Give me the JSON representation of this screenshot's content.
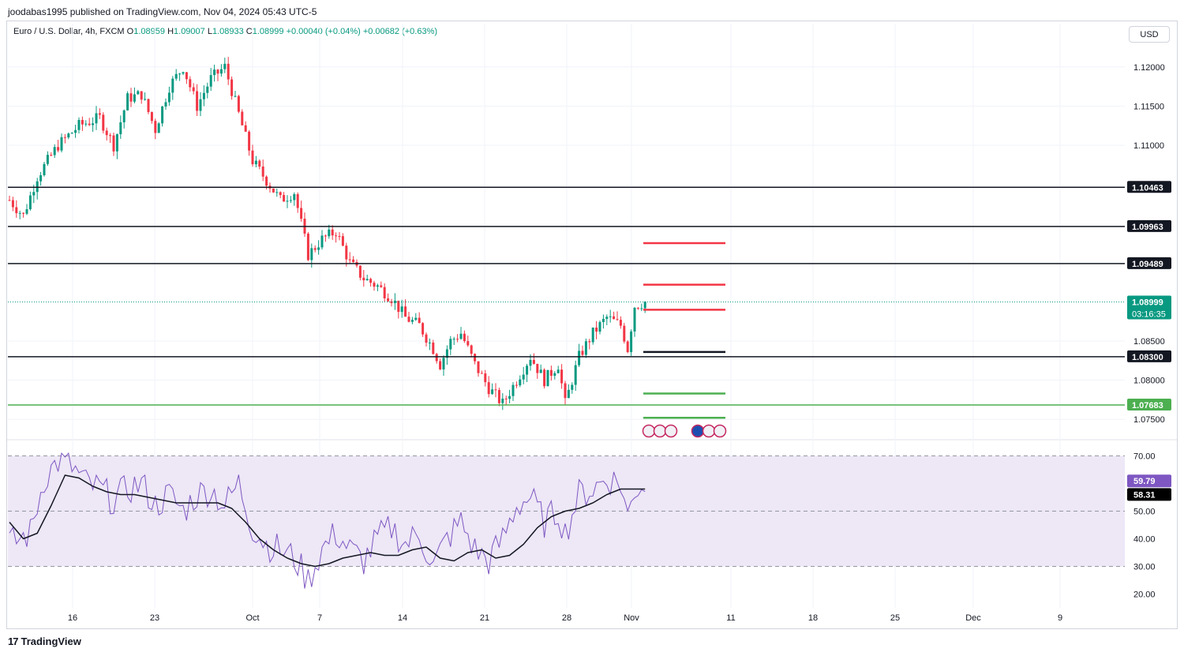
{
  "header": {
    "published": "joodabas1995 published on TradingView.com, Nov 04, 2024 05:43 UTC-5",
    "symbol": "Euro / U.S. Dollar, 4h, FXCM",
    "open_label": "O",
    "open": "1.08959",
    "high_label": "H",
    "high": "1.09007",
    "low_label": "L",
    "low": "1.08933",
    "close_label": "C",
    "close": "1.08999",
    "change": "+0.00040 (+0.04%)",
    "change2": "+0.00682 (+0.63%)"
  },
  "currency_button": "USD",
  "footer": {
    "brand": "TradingView"
  },
  "colors": {
    "up": "#089981",
    "down": "#f23645",
    "rsi": "#7e57c2",
    "rsi_band": "#ede7f6",
    "level": "#131722",
    "support": "#4caf50"
  },
  "chart_data": [
    {
      "type": "candlestick",
      "name": "EURUSD 4h",
      "ylim": [
        1.0725,
        1.1225
      ],
      "y_ticks": [
        "1.12000",
        "1.11500",
        "1.11000",
        "1.08500",
        "1.08000",
        "1.07500"
      ],
      "y_tick_values": [
        1.12,
        1.115,
        1.11,
        1.085,
        1.08,
        1.075
      ],
      "x_ticks": [
        "16",
        "23",
        "Oct",
        "7",
        "14",
        "21",
        "28",
        "Nov",
        "11",
        "18",
        "25",
        "Dec",
        "9"
      ],
      "price_path": [
        [
          0,
          1.103
        ],
        [
          4,
          1.101
        ],
        [
          8,
          1.106
        ],
        [
          14,
          1.11
        ],
        [
          20,
          1.1125
        ],
        [
          26,
          1.1135
        ],
        [
          30,
          1.11
        ],
        [
          34,
          1.116
        ],
        [
          38,
          1.1165
        ],
        [
          42,
          1.112
        ],
        [
          46,
          1.1175
        ],
        [
          50,
          1.12
        ],
        [
          54,
          1.115
        ],
        [
          58,
          1.1185
        ],
        [
          62,
          1.12
        ],
        [
          66,
          1.114
        ],
        [
          70,
          1.108
        ],
        [
          74,
          1.1055
        ],
        [
          78,
          1.103
        ],
        [
          82,
          1.104
        ],
        [
          86,
          1.096
        ],
        [
          90,
          1.098
        ],
        [
          94,
          1.099
        ],
        [
          98,
          1.095
        ],
        [
          102,
          1.093
        ],
        [
          106,
          1.092
        ],
        [
          110,
          1.0905
        ],
        [
          114,
          1.088
        ],
        [
          118,
          1.087
        ],
        [
          122,
          1.084
        ],
        [
          124,
          1.082
        ],
        [
          127,
          1.085
        ],
        [
          130,
          1.086
        ],
        [
          134,
          1.082
        ],
        [
          138,
          1.079
        ],
        [
          142,
          1.077
        ],
        [
          146,
          1.08
        ],
        [
          150,
          1.083
        ],
        [
          154,
          1.08
        ],
        [
          158,
          1.082
        ],
        [
          160,
          1.077
        ],
        [
          164,
          1.083
        ],
        [
          168,
          1.086
        ],
        [
          172,
          1.088
        ],
        [
          176,
          1.087
        ],
        [
          178,
          1.084
        ],
        [
          180,
          1.0895
        ],
        [
          183,
          1.09
        ]
      ],
      "price_labels": [
        {
          "value": 1.10463,
          "text": "1.10463",
          "kind": "level"
        },
        {
          "value": 1.09963,
          "text": "1.09963",
          "kind": "level"
        },
        {
          "value": 1.09489,
          "text": "1.09489",
          "kind": "level"
        },
        {
          "value": 1.08999,
          "text": "1.08999",
          "sub": "03:16:35",
          "kind": "last"
        },
        {
          "value": 1.083,
          "text": "1.08300",
          "kind": "level"
        },
        {
          "value": 1.07683,
          "text": "1.07683",
          "kind": "support"
        }
      ],
      "target_lines": [
        {
          "value": 1.0975,
          "color": "red"
        },
        {
          "value": 1.0922,
          "color": "red"
        },
        {
          "value": 1.089,
          "color": "red"
        },
        {
          "value": 1.0836,
          "color": "black"
        },
        {
          "value": 1.0783,
          "color": "green"
        },
        {
          "value": 1.0752,
          "color": "green"
        }
      ]
    },
    {
      "type": "line",
      "name": "RSI",
      "ylim": [
        15,
        75
      ],
      "y_ticks": [
        "70.00",
        "50.00",
        "40.00",
        "30.00",
        "20.00"
      ],
      "y_tick_values": [
        70,
        50,
        40,
        30,
        20
      ],
      "band": [
        30,
        70
      ],
      "midline": 50,
      "rsi_path": [
        [
          0,
          38
        ],
        [
          6,
          42
        ],
        [
          10,
          62
        ],
        [
          14,
          68
        ],
        [
          18,
          66
        ],
        [
          22,
          60
        ],
        [
          26,
          58
        ],
        [
          30,
          54
        ],
        [
          34,
          58
        ],
        [
          38,
          60
        ],
        [
          42,
          52
        ],
        [
          46,
          56
        ],
        [
          50,
          50
        ],
        [
          54,
          56
        ],
        [
          58,
          58
        ],
        [
          62,
          52
        ],
        [
          66,
          60
        ],
        [
          70,
          44
        ],
        [
          74,
          38
        ],
        [
          78,
          36
        ],
        [
          82,
          33
        ],
        [
          86,
          25
        ],
        [
          90,
          36
        ],
        [
          94,
          42
        ],
        [
          98,
          36
        ],
        [
          102,
          32
        ],
        [
          106,
          40
        ],
        [
          110,
          44
        ],
        [
          114,
          38
        ],
        [
          118,
          42
        ],
        [
          122,
          30
        ],
        [
          126,
          40
        ],
        [
          130,
          46
        ],
        [
          134,
          36
        ],
        [
          138,
          32
        ],
        [
          142,
          40
        ],
        [
          146,
          52
        ],
        [
          150,
          55
        ],
        [
          154,
          46
        ],
        [
          158,
          50
        ],
        [
          160,
          42
        ],
        [
          164,
          56
        ],
        [
          168,
          58
        ],
        [
          172,
          62
        ],
        [
          176,
          60
        ],
        [
          178,
          48
        ],
        [
          180,
          58
        ],
        [
          183,
          60
        ]
      ],
      "ma_path": [
        [
          0,
          46
        ],
        [
          4,
          40
        ],
        [
          8,
          42
        ],
        [
          12,
          52
        ],
        [
          16,
          63
        ],
        [
          20,
          62
        ],
        [
          24,
          59
        ],
        [
          28,
          57
        ],
        [
          32,
          56
        ],
        [
          36,
          56
        ],
        [
          40,
          55
        ],
        [
          44,
          54
        ],
        [
          48,
          53
        ],
        [
          52,
          53
        ],
        [
          56,
          53
        ],
        [
          60,
          53
        ],
        [
          64,
          51
        ],
        [
          68,
          46
        ],
        [
          72,
          40
        ],
        [
          76,
          36
        ],
        [
          80,
          33
        ],
        [
          84,
          31
        ],
        [
          88,
          30
        ],
        [
          92,
          31
        ],
        [
          96,
          33
        ],
        [
          100,
          34
        ],
        [
          104,
          35
        ],
        [
          108,
          34
        ],
        [
          112,
          34
        ],
        [
          116,
          36
        ],
        [
          120,
          37
        ],
        [
          124,
          33
        ],
        [
          128,
          32
        ],
        [
          132,
          35
        ],
        [
          136,
          36
        ],
        [
          140,
          33
        ],
        [
          144,
          34
        ],
        [
          148,
          38
        ],
        [
          152,
          44
        ],
        [
          156,
          48
        ],
        [
          160,
          50
        ],
        [
          164,
          51
        ],
        [
          168,
          53
        ],
        [
          172,
          56
        ],
        [
          176,
          58
        ],
        [
          180,
          58
        ],
        [
          183,
          58
        ]
      ],
      "last_labels": [
        {
          "value": 59.79,
          "text": "59.79",
          "kind": "rsi"
        },
        {
          "value": 58.31,
          "text": "58.31",
          "kind": "ma"
        }
      ]
    }
  ]
}
